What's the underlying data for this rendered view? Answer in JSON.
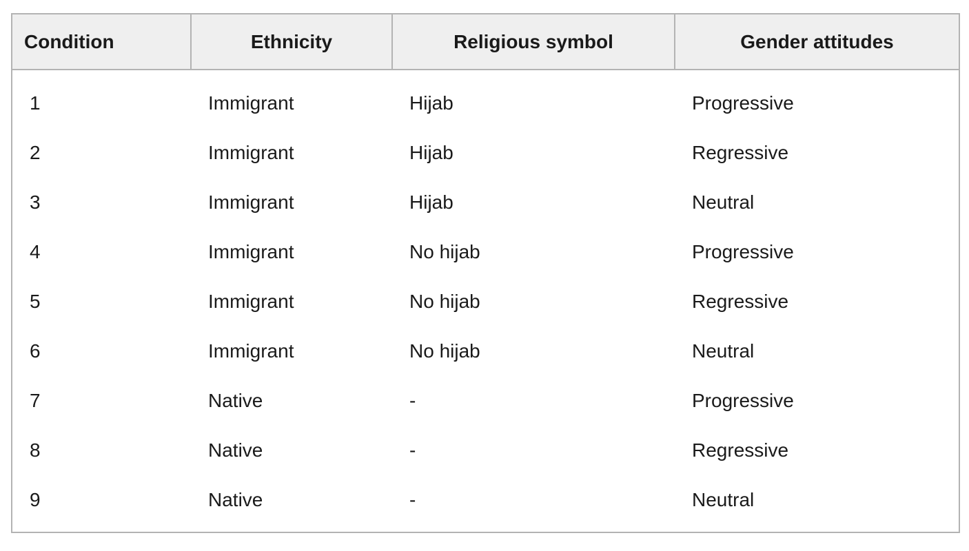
{
  "table": {
    "headers": [
      "Condition",
      "Ethnicity",
      "Religious symbol",
      "Gender attitudes"
    ],
    "rows": [
      [
        "1",
        "Immigrant",
        "Hijab",
        "Progressive"
      ],
      [
        "2",
        "Immigrant",
        "Hijab",
        "Regressive"
      ],
      [
        "3",
        "Immigrant",
        "Hijab",
        "Neutral"
      ],
      [
        "4",
        "Immigrant",
        "No hijab",
        "Progressive"
      ],
      [
        "5",
        "Immigrant",
        "No hijab",
        "Regressive"
      ],
      [
        "6",
        "Immigrant",
        "No hijab",
        "Neutral"
      ],
      [
        "7",
        "Native",
        "-",
        "Progressive"
      ],
      [
        "8",
        "Native",
        "-",
        "Regressive"
      ],
      [
        "9",
        "Native",
        "-",
        "Neutral"
      ]
    ]
  },
  "colors": {
    "header_background": "#efefef",
    "border": "#b3b3b3",
    "text": "#1a1a1a"
  }
}
